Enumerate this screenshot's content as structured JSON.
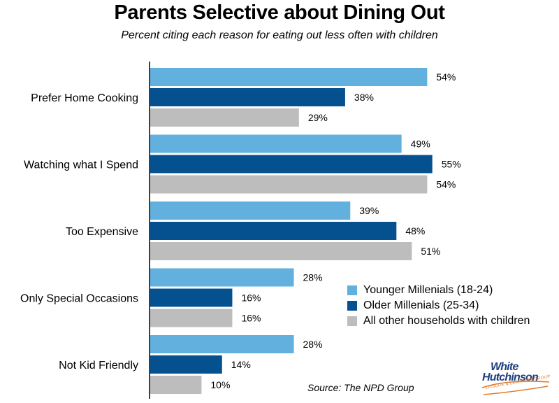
{
  "chart_data": {
    "type": "bar",
    "orientation": "horizontal",
    "title": "Parents Selective about Dining Out",
    "subtitle": "Percent citing each reason for eating out less often with children",
    "categories": [
      "Prefer Home Cooking",
      "Watching what I Spend",
      "Too Expensive",
      "Only Special Occasions",
      "Not Kid Friendly"
    ],
    "series": [
      {
        "name": "Younger Millenials (18-24)",
        "color": "#62b0dd",
        "values": [
          54,
          49,
          39,
          28,
          28
        ]
      },
      {
        "name": "Older Millenials (25-34)",
        "color": "#05508f",
        "values": [
          38,
          55,
          48,
          16,
          14
        ]
      },
      {
        "name": "All other households with children",
        "color": "#bdbdbd",
        "values": [
          29,
          54,
          51,
          16,
          10
        ]
      }
    ],
    "value_suffix": "%",
    "xlim": [
      0,
      55
    ],
    "grid": false,
    "legend_position": "bottom-right",
    "source": "Source: The NPD Group"
  },
  "logo": {
    "line1": "White",
    "line2": "Hutchinson",
    "tagline": "LEISURE & LEARNING GROUP"
  }
}
